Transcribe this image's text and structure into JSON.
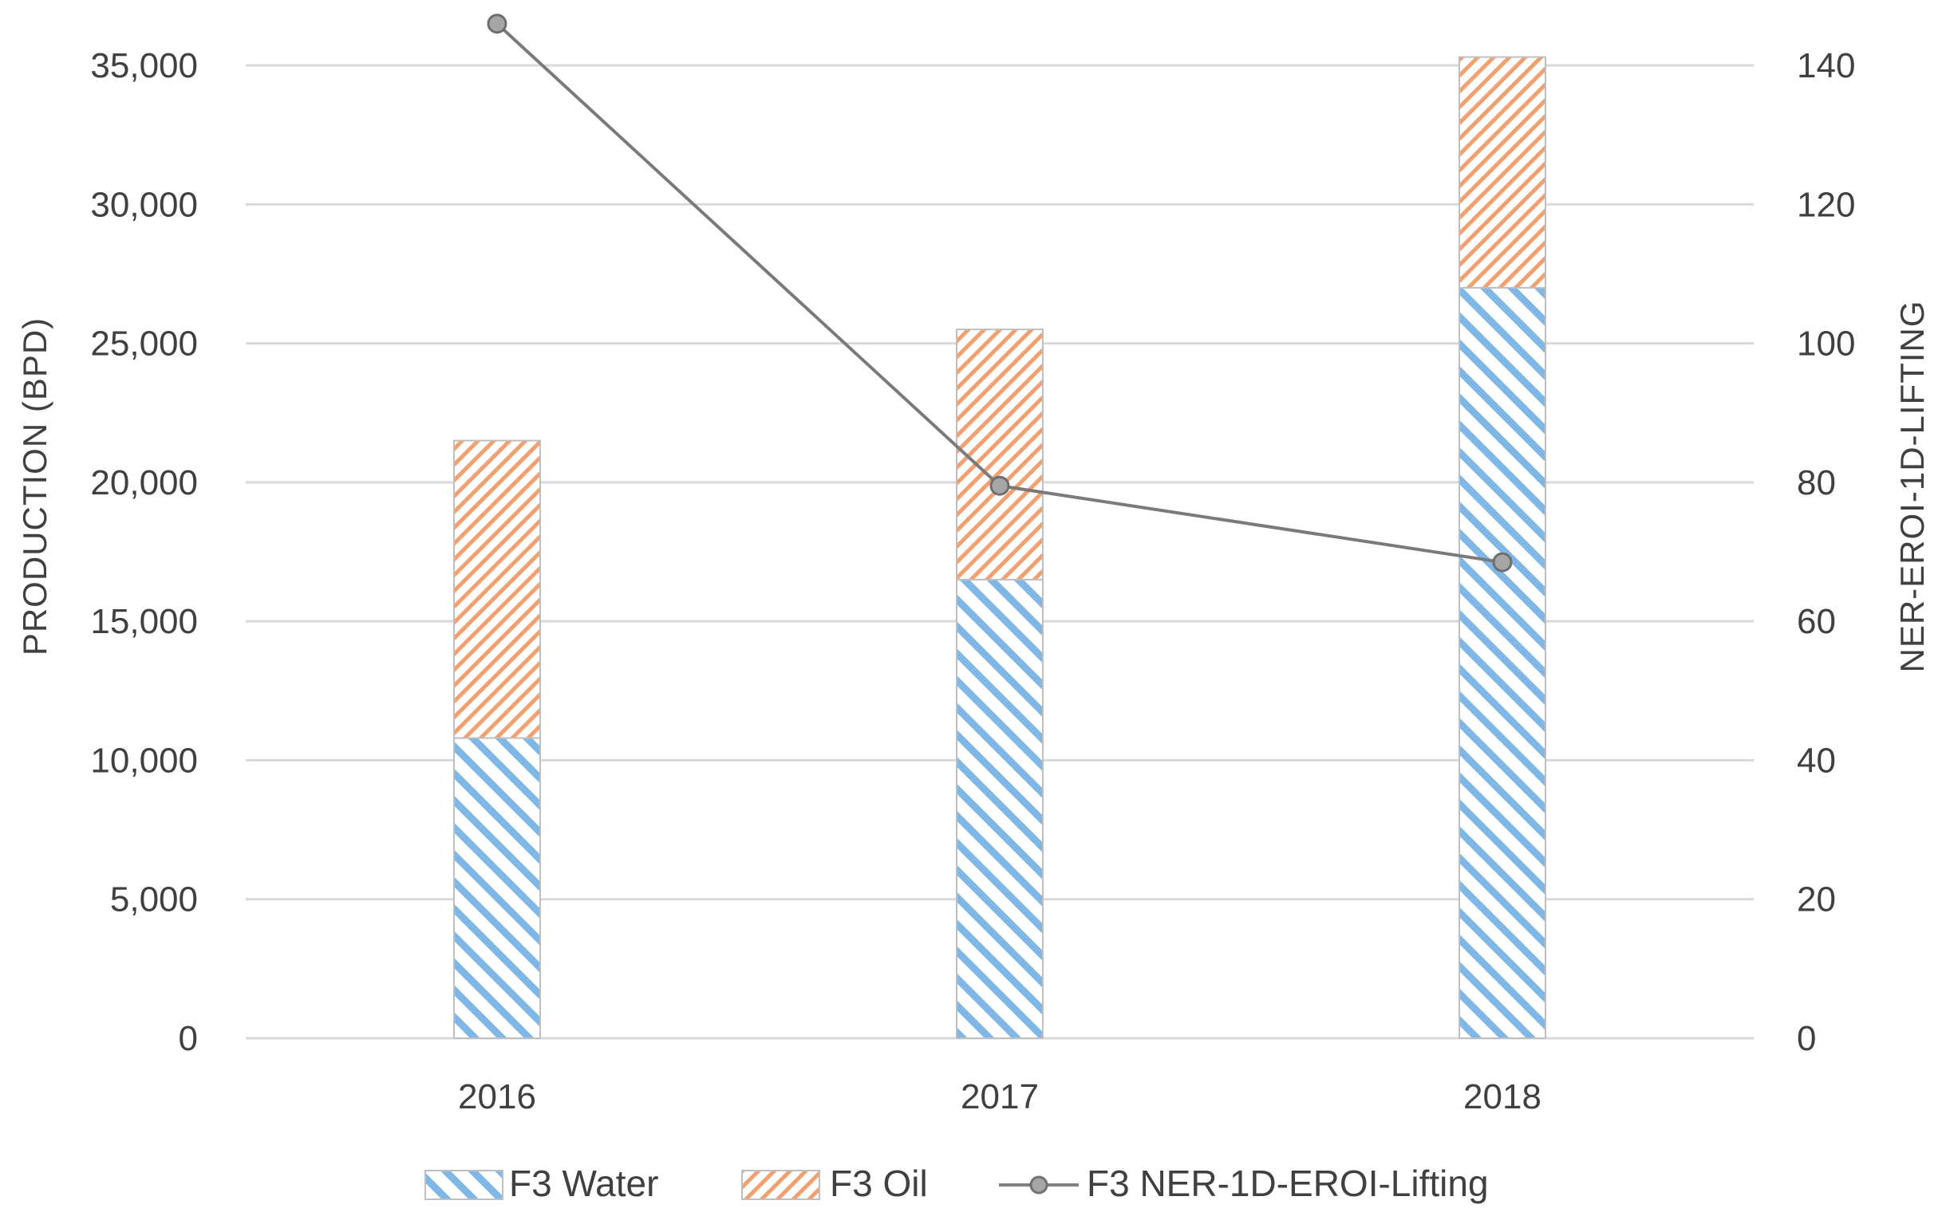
{
  "chart_data": {
    "type": "bar",
    "stacked": true,
    "categories": [
      "2016",
      "2017",
      "2018"
    ],
    "series": [
      {
        "name": "F3 Water",
        "axis": "left",
        "color": "#7fb8e6",
        "pattern": "diagonal-right",
        "values": [
          10800,
          16500,
          27000
        ]
      },
      {
        "name": "F3 Oil",
        "axis": "left",
        "color": "#f2a070",
        "pattern": "diagonal-left",
        "values": [
          10700,
          9000,
          8300
        ]
      },
      {
        "name": "F3 NER-1D-EROI-Lifting",
        "axis": "right",
        "type": "line",
        "color": "#808080",
        "values": [
          146,
          79.5,
          68.5
        ]
      }
    ],
    "y_left": {
      "label": "PRODUCTION (BPD)",
      "min": 0,
      "max": 35000,
      "ticks": [
        0,
        5000,
        10000,
        15000,
        20000,
        25000,
        30000,
        35000
      ],
      "tick_labels": [
        "0",
        "5,000",
        "10,000",
        "15,000",
        "20,000",
        "25,000",
        "30,000",
        "35,000"
      ]
    },
    "y_right": {
      "label": "NER-EROI-1D-LIFTING",
      "min": 0,
      "max": 140,
      "ticks": [
        0,
        20,
        40,
        60,
        80,
        100,
        120,
        140
      ],
      "tick_labels": [
        "0",
        "20",
        "40",
        "60",
        "80",
        "100",
        "120",
        "140"
      ]
    },
    "grid": true,
    "legend_position": "bottom"
  }
}
